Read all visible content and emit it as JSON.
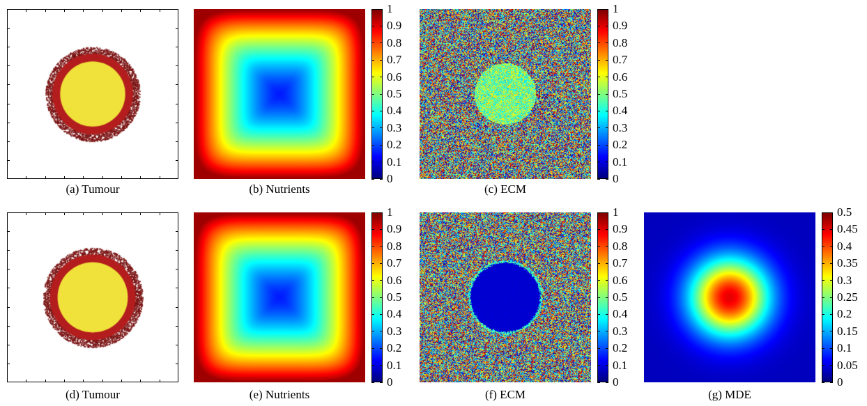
{
  "chart_data": [
    {
      "id": "a",
      "type": "heatmap",
      "title": "(a) Tumour",
      "colorbar": null,
      "description_field": "tumour",
      "core_radius_frac": 0.19,
      "rim_radius_frac": 0.235
    },
    {
      "id": "b",
      "type": "heatmap",
      "title": "(b) Nutrients",
      "field": "nutrients",
      "colorbar": {
        "range": [
          0,
          1
        ],
        "ticks": [
          "0",
          "0.1",
          "0.2",
          "0.3",
          "0.4",
          "0.5",
          "0.6",
          "0.7",
          "0.8",
          "0.9",
          "1"
        ]
      }
    },
    {
      "id": "c",
      "type": "heatmap",
      "title": "(c) ECM",
      "field": "ecm_noise",
      "colorbar": {
        "range": [
          0,
          1
        ],
        "ticks": [
          "0",
          "0.1",
          "0.2",
          "0.3",
          "0.4",
          "0.5",
          "0.6",
          "0.7",
          "0.8",
          "0.9",
          "1"
        ]
      }
    },
    {
      "id": "d",
      "type": "heatmap",
      "title": "(d) Tumour",
      "colorbar": null,
      "description_field": "tumour",
      "core_radius_frac": 0.205,
      "rim_radius_frac": 0.25
    },
    {
      "id": "e",
      "type": "heatmap",
      "title": "(e) Nutrients",
      "field": "nutrients",
      "colorbar": {
        "range": [
          0,
          1
        ],
        "ticks": [
          "0",
          "0.1",
          "0.2",
          "0.3",
          "0.4",
          "0.5",
          "0.6",
          "0.7",
          "0.8",
          "0.9",
          "1"
        ]
      }
    },
    {
      "id": "f",
      "type": "heatmap",
      "title": "(f) ECM",
      "field": "ecm_degraded",
      "colorbar": {
        "range": [
          0,
          1
        ],
        "ticks": [
          "0",
          "0.1",
          "0.2",
          "0.3",
          "0.4",
          "0.5",
          "0.6",
          "0.7",
          "0.8",
          "0.9",
          "1"
        ]
      }
    },
    {
      "id": "g",
      "type": "heatmap",
      "title": "(g) MDE",
      "field": "mde",
      "colorbar": {
        "range": [
          0,
          0.5
        ],
        "ticks": [
          "0",
          "0.05",
          "0.1",
          "0.15",
          "0.2",
          "0.25",
          "0.3",
          "0.35",
          "0.4",
          "0.45",
          "0.5"
        ]
      }
    }
  ],
  "colormap": "jet",
  "colors": {
    "tumour_core": "#f0e23a",
    "tumour_rim": "#b31d1d",
    "tumour_edge": "#7a1212"
  }
}
